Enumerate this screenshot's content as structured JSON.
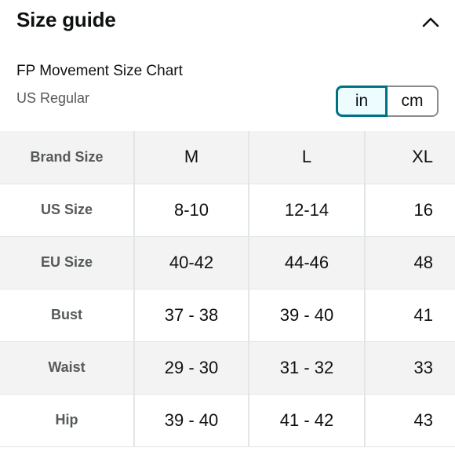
{
  "header": {
    "title": "Size guide",
    "collapse_icon": "chevron-up-icon"
  },
  "chart": {
    "name": "FP Movement Size Chart",
    "region": "US Regular"
  },
  "units": {
    "options": [
      "in",
      "cm"
    ],
    "selected": "in"
  },
  "colors": {
    "accent": "#007185",
    "selected_bg": "#edfdff",
    "shaded_row": "#f3f3f3",
    "muted_text": "#565959"
  },
  "table": {
    "header_label": "Brand Size",
    "columns": [
      "M",
      "L",
      "XL"
    ],
    "rows": [
      {
        "label": "US Size",
        "values": [
          "8-10",
          "12-14",
          "16"
        ]
      },
      {
        "label": "EU Size",
        "values": [
          "40-42",
          "44-46",
          "48"
        ]
      },
      {
        "label": "Bust",
        "values": [
          "37 - 38",
          "39 - 40",
          "41"
        ]
      },
      {
        "label": "Waist",
        "values": [
          "29 - 30",
          "31 - 32",
          "33"
        ]
      },
      {
        "label": "Hip",
        "values": [
          "39 - 40",
          "41 - 42",
          "43"
        ]
      }
    ]
  }
}
